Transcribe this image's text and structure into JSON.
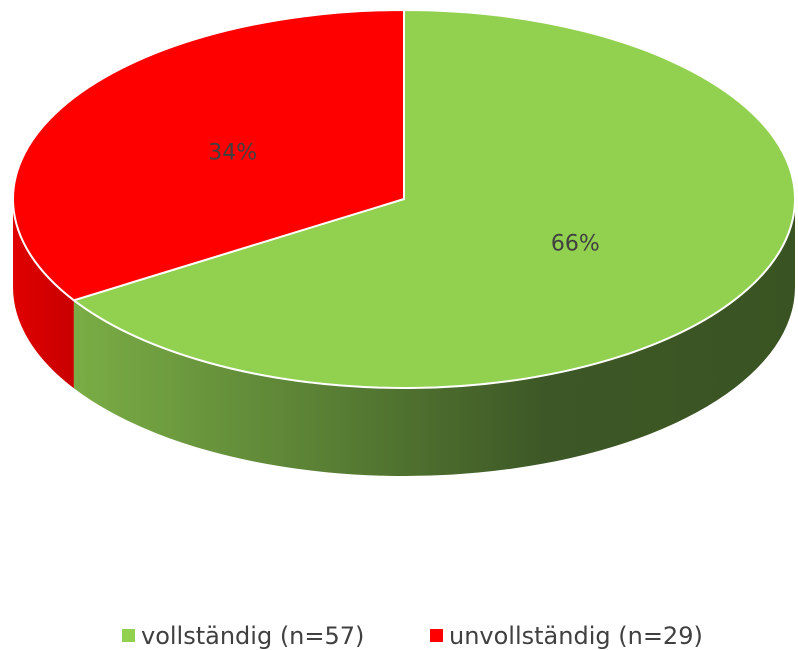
{
  "chart_data": {
    "type": "pie",
    "categories": [
      "vollständig (n=57)",
      "unvollständig (n=29)"
    ],
    "values": [
      66,
      34
    ],
    "value_labels": [
      "66%",
      "34%"
    ],
    "colors": [
      "#92d050",
      "#ff0000"
    ],
    "legend": "bottom"
  }
}
